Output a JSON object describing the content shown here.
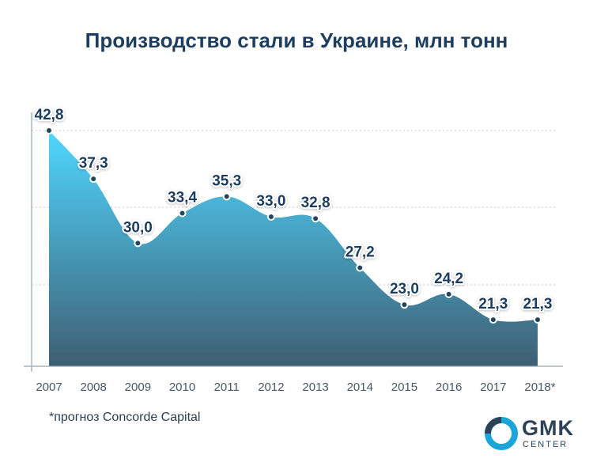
{
  "title": "Производство стали в Украине, млн тонн",
  "footnote": "*прогноз Concorde Capital",
  "logo": {
    "name": "GMK",
    "sub": "CENTER"
  },
  "colors": {
    "area_top": "#4fd7ff",
    "area_bottom": "#3e5e72",
    "label": "#1d3e5e",
    "axis": "#9aa4ad"
  },
  "chart_data": {
    "type": "area",
    "title": "Производство стали в Украине, млн тонн",
    "categories": [
      "2007",
      "2008",
      "2009",
      "2010",
      "2011",
      "2012",
      "2013",
      "2014",
      "2015",
      "2016",
      "2017",
      "2018*"
    ],
    "values": [
      42.8,
      37.3,
      30.0,
      33.4,
      35.3,
      33.0,
      32.8,
      27.2,
      23.0,
      24.2,
      21.3,
      21.3
    ],
    "labels": [
      "42,8",
      "37,3",
      "30,0",
      "33,4",
      "35,3",
      "33,0",
      "32,8",
      "27,2",
      "23,0",
      "24,2",
      "21,3",
      "21,3"
    ],
    "ylim": [
      16,
      42.8
    ],
    "grid": true
  }
}
